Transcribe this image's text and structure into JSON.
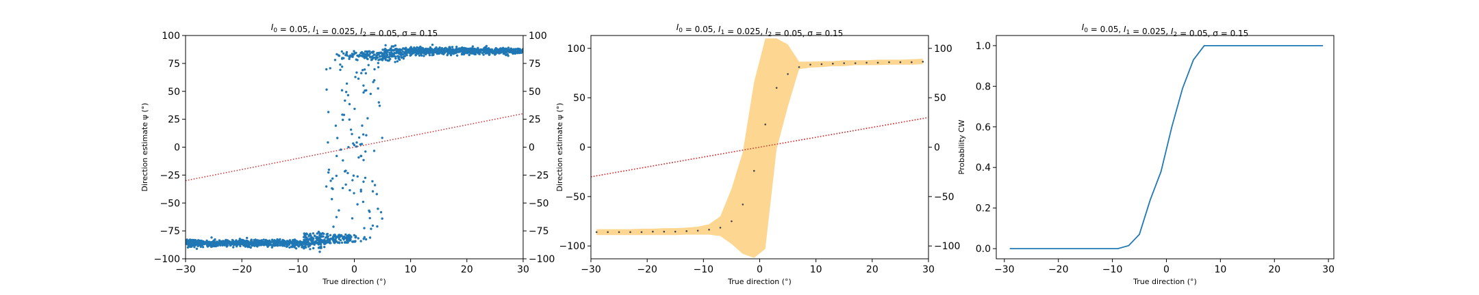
{
  "figure": {
    "background": "#ffffff"
  },
  "chart_data": [
    {
      "type": "scatter",
      "title": "I_0 = 0.05, I_1 = 0.025, I_2 = 0.05, σ = 0.15",
      "xlabel": "True direction (°)",
      "ylabel": "Direction estimate ψ (°)",
      "xlim": [
        -30,
        30
      ],
      "ylim": [
        -100,
        100
      ],
      "xticks": [
        "−30",
        "−20",
        "−10",
        "0",
        "10",
        "20",
        "30"
      ],
      "yticks": [
        "−100",
        "−75",
        "−50",
        "−25",
        "0",
        "25",
        "50",
        "75",
        "100"
      ],
      "right_yticks": [
        "−100",
        "−75",
        "−50",
        "−25",
        "0",
        "25",
        "50",
        "75",
        "100"
      ],
      "right_ylabel": "Direction estimate ψ (°)",
      "grid": false,
      "series": [
        {
          "kind": "scatter",
          "color": "#1f77b4",
          "description": "approx. 2000 trial estimates: ≈ -86 for x < -5, ≈ +86 for x > 5, bimodal spread between -5 and +5"
        }
      ],
      "reference_line": {
        "style": "dotted",
        "color": "#d62728",
        "x": [
          -30,
          30
        ],
        "y": [
          -30,
          30
        ]
      }
    },
    {
      "type": "line",
      "title": "I_0 = 0.05, I_1 = 0.025, I_2 = 0.05, σ = 0.15",
      "xlabel": "True direction (°)",
      "xlim": [
        -30,
        30
      ],
      "ylim": [
        -113,
        113
      ],
      "xticks": [
        "−30",
        "−20",
        "−10",
        "0",
        "10",
        "20",
        "30"
      ],
      "yticks": [
        "−100",
        "−50",
        "0",
        "50",
        "100"
      ],
      "right_yticks": [
        "−100",
        "−50",
        "0",
        "50",
        "100"
      ],
      "grid": false,
      "x": [
        -29,
        -27,
        -25,
        -23,
        -21,
        -19,
        -17,
        -15,
        -13,
        -11,
        -9,
        -7,
        -5,
        -3,
        -1,
        1,
        3,
        5,
        7,
        9,
        11,
        13,
        15,
        17,
        19,
        21,
        23,
        25,
        27,
        29
      ],
      "series": [
        {
          "name": "mean",
          "kind": "points",
          "color": "#444444",
          "values": [
            -86,
            -86,
            -86,
            -86,
            -86,
            -85.5,
            -85.5,
            -85.5,
            -85,
            -84.5,
            -83.5,
            -81.5,
            -75,
            -58,
            -24,
            23,
            60,
            74,
            81,
            83.5,
            84,
            84.5,
            85,
            85,
            85.5,
            85.5,
            86,
            86,
            86,
            86.5
          ]
        },
        {
          "name": "band_lower",
          "kind": "band",
          "color": "#fdd58c",
          "values": [
            -89,
            -89,
            -89,
            -89,
            -89,
            -89,
            -89,
            -89,
            -88.5,
            -88.5,
            -88.5,
            -90,
            -98,
            -108,
            -112,
            -103,
            -2,
            41,
            79,
            80.5,
            81,
            82,
            82,
            83,
            83,
            83,
            83.5,
            83.5,
            83.5,
            84
          ]
        },
        {
          "name": "band_upper",
          "kind": "band",
          "color": "#fdd58c",
          "values": [
            -83,
            -83,
            -83,
            -83,
            -82.5,
            -82.5,
            -82,
            -82,
            -81.5,
            -80.5,
            -78,
            -70,
            -42,
            -5,
            66,
            110,
            110,
            104,
            86.5,
            86.5,
            87,
            87,
            88,
            88,
            88,
            88.5,
            88.5,
            88.5,
            89,
            89.5
          ]
        }
      ],
      "reference_line": {
        "style": "dotted",
        "color": "#d62728",
        "x": [
          -30,
          30
        ],
        "y": [
          -30,
          30
        ]
      }
    },
    {
      "type": "line",
      "title": "I_0 = 0.05, I_1 = 0.025, I_2 = 0.05, σ = 0.15",
      "xlabel": "True direction (°)",
      "ylabel": "Probability CW",
      "xlim": [
        -31.5,
        31
      ],
      "ylim": [
        -0.05,
        1.05
      ],
      "xticks": [
        "−30",
        "−20",
        "−10",
        "0",
        "10",
        "20",
        "30"
      ],
      "yticks": [
        "0.0",
        "0.2",
        "0.4",
        "0.6",
        "0.8",
        "1.0"
      ],
      "grid": false,
      "series": [
        {
          "color": "#1f77b4",
          "x": [
            -29,
            -27,
            -25,
            -23,
            -21,
            -19,
            -17,
            -15,
            -13,
            -11,
            -9,
            -7,
            -5,
            -3,
            -1,
            1,
            3,
            5,
            7,
            9,
            11,
            13,
            15,
            17,
            19,
            21,
            23,
            25,
            27,
            29
          ],
          "values": [
            0,
            0,
            0,
            0,
            0,
            0,
            0,
            0,
            0,
            0,
            0,
            0.015,
            0.07,
            0.24,
            0.38,
            0.6,
            0.79,
            0.93,
            1,
            1,
            1,
            1,
            1,
            1,
            1,
            1,
            1,
            1,
            1,
            1
          ]
        }
      ]
    }
  ]
}
